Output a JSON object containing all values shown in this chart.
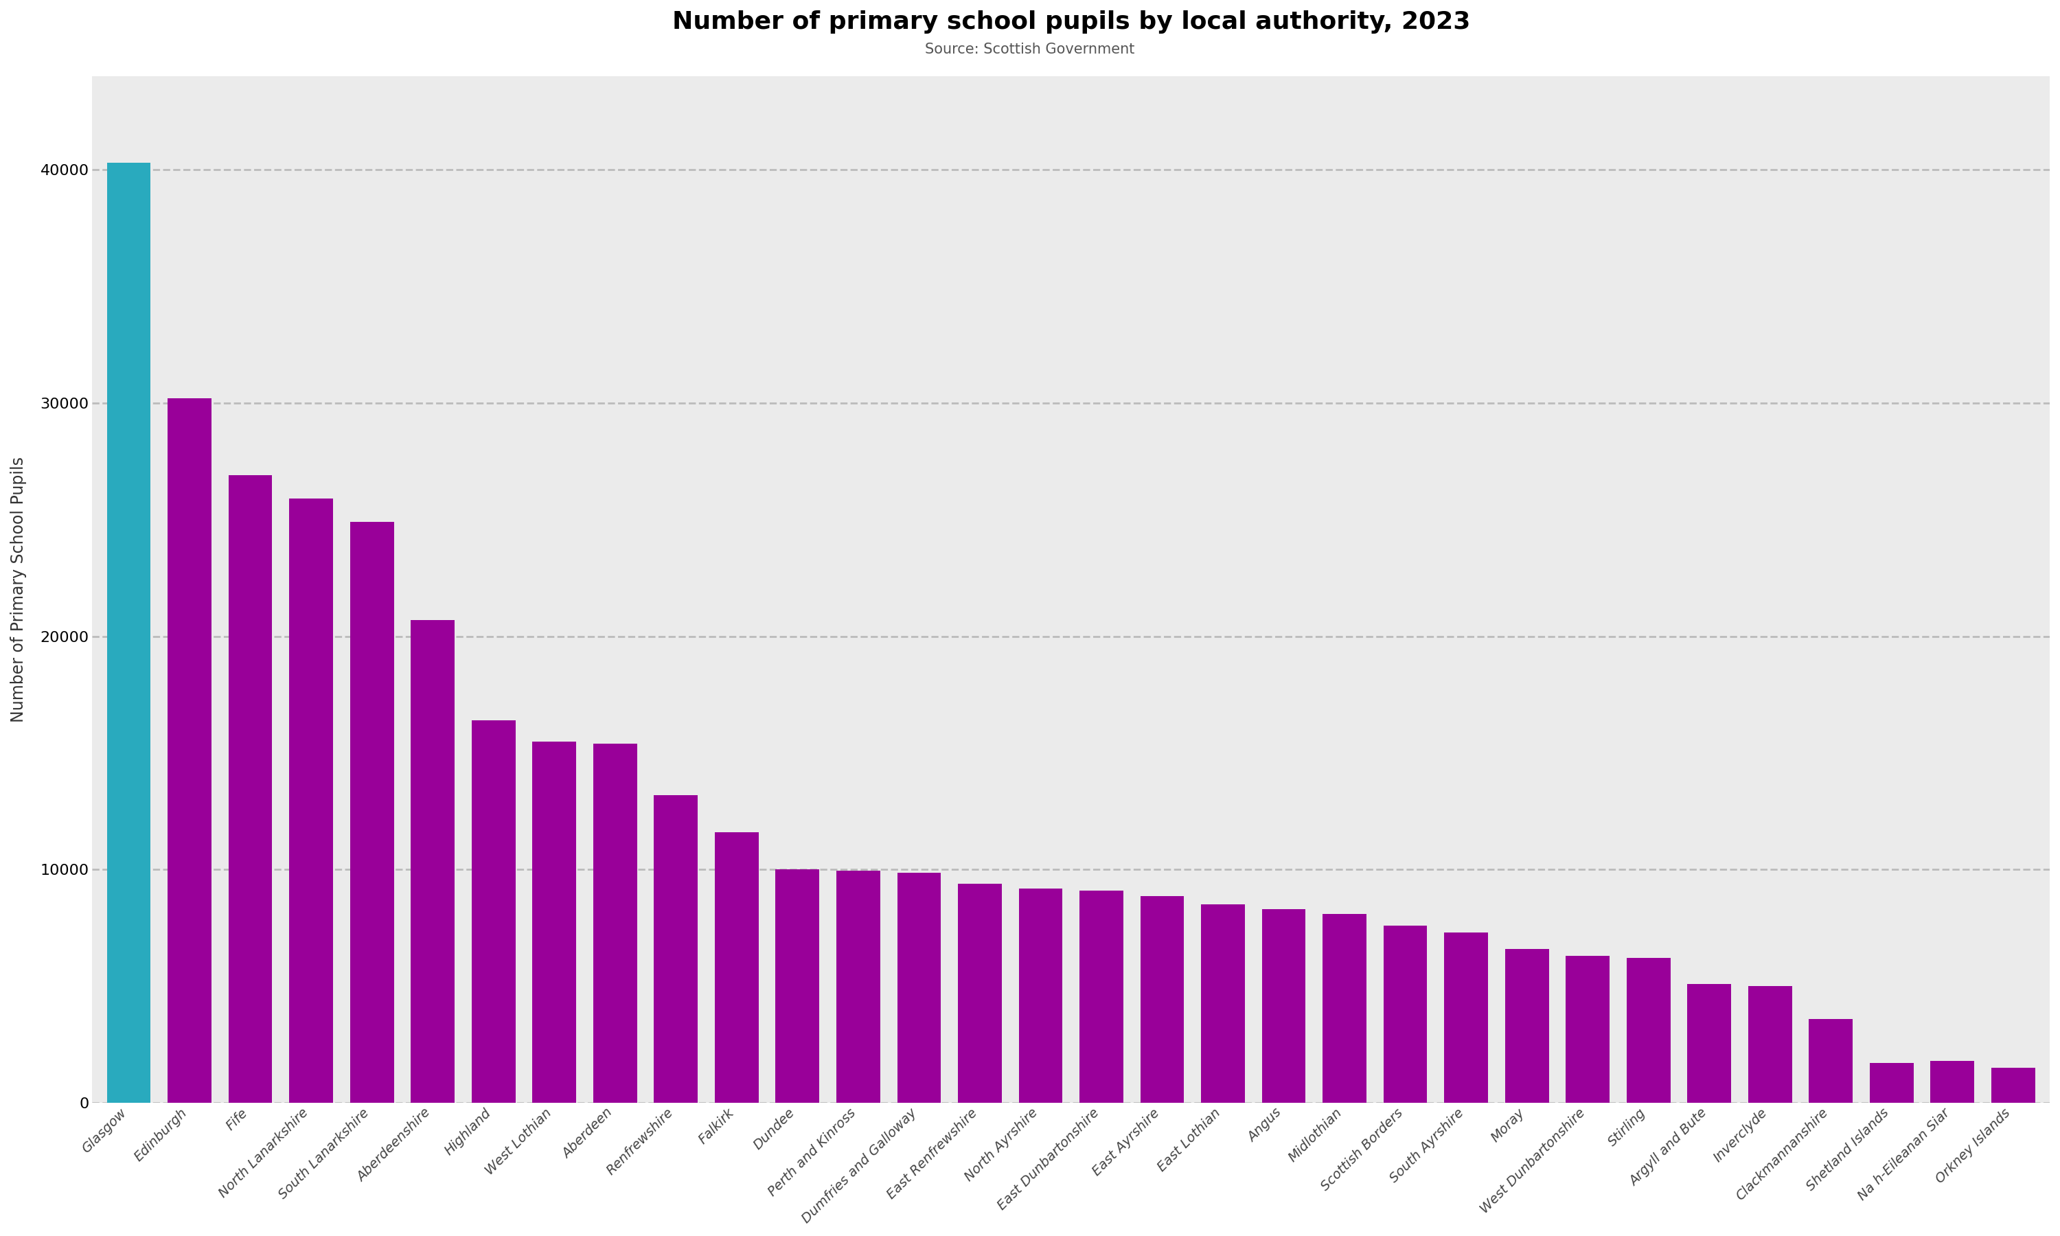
{
  "title": "Number of primary school pupils by local authority, 2023",
  "subtitle": "Source: Scottish Government",
  "ylabel": "Number of Primary School Pupils",
  "categories": [
    "Glasgow",
    "Edinburgh",
    "Fife",
    "North Lanarkshire",
    "South Lanarkshire",
    "Aberdeenshire",
    "Highland",
    "West Lothian",
    "Aberdeen",
    "Renfrewshire",
    "Falkirk",
    "Dundee",
    "Perth and Kinross",
    "Dumfries and Galloway",
    "East Renfrewshire",
    "North Ayrshire",
    "East Dunbartonshire",
    "East Ayrshire",
    "East Lothian",
    "Angus",
    "Midlothian",
    "Scottish Borders",
    "South Ayrshire",
    "Moray",
    "West Dunbartonshire",
    "Stirling",
    "Argyll and Bute",
    "Inverclyde",
    "Clackmannanshire",
    "Shetland Islands",
    "Na h-Eileanan Siar",
    "Orkney Islands"
  ],
  "values": [
    40300,
    30200,
    26900,
    25900,
    24900,
    20700,
    16400,
    15500,
    15400,
    13200,
    11600,
    10000,
    9950,
    9850,
    9400,
    9200,
    9100,
    8850,
    8500,
    8300,
    8100,
    7600,
    7300,
    6600,
    6300,
    6200,
    5100,
    5000,
    3600,
    1700,
    1800,
    1500
  ],
  "bar_colors_list": [
    "#29AABE",
    "#990099",
    "#990099",
    "#990099",
    "#990099",
    "#990099",
    "#990099",
    "#990099",
    "#990099",
    "#990099",
    "#990099",
    "#990099",
    "#990099",
    "#990099",
    "#990099",
    "#990099",
    "#990099",
    "#990099",
    "#990099",
    "#990099",
    "#990099",
    "#990099",
    "#990099",
    "#990099",
    "#990099",
    "#990099",
    "#990099",
    "#990099",
    "#990099",
    "#990099",
    "#990099",
    "#990099"
  ],
  "ylim": [
    0,
    44000
  ],
  "yticks": [
    0,
    10000,
    20000,
    30000,
    40000
  ],
  "plot_bg_color": "#ebebeb",
  "fig_bg_color": "#ffffff",
  "title_fontsize": 26,
  "subtitle_fontsize": 15,
  "ylabel_fontsize": 17,
  "ytick_fontsize": 16,
  "xtick_fontsize": 14,
  "grid_color": "#bbbbbb",
  "grid_linewidth": 2.0,
  "bar_width": 0.72
}
